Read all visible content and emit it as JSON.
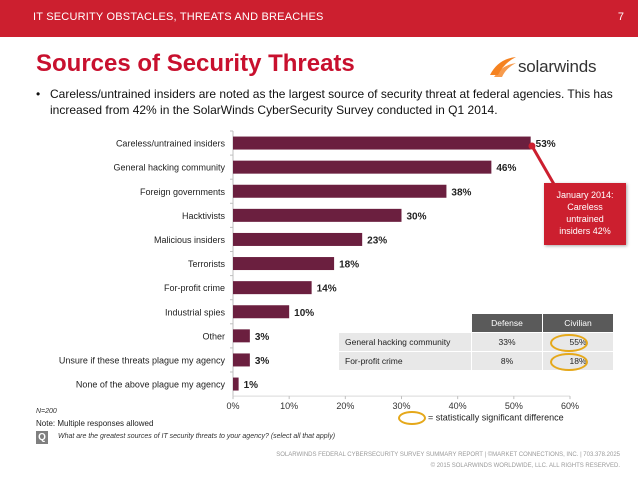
{
  "header": {
    "section_title": "IT SECURITY OBSTACLES, THREATS AND BREACHES",
    "page_number": "7"
  },
  "page_title": "Sources of Security Threats",
  "logo": {
    "text": "solarwinds"
  },
  "bullet": "Careless/untrained insiders are noted as the largest source of security threat at federal agencies. This has increased from 42% in the SolarWinds CyberSecurity Survey conducted in Q1 2014.",
  "callout": {
    "lines": [
      "January 2014:",
      "Careless",
      "untrained",
      "insiders 42%"
    ]
  },
  "subgroup_table": {
    "headers": [
      "",
      "Defense",
      "Civilian"
    ],
    "rows": [
      {
        "label": "General hacking community",
        "defense": "33%",
        "civilian": "55%",
        "civilian_significant": true
      },
      {
        "label": "For-profit crime",
        "defense": "8%",
        "civilian": "18%",
        "civilian_significant": true
      }
    ]
  },
  "significance_legend": "= statistically significant difference",
  "notes": {
    "n": "N=200",
    "multiple": "Note: Multiple responses allowed",
    "q_icon": "Q",
    "question": "What are the greatest sources of IT security threats to your agency? (select all that apply)"
  },
  "footer": {
    "line1": "SOLARWINDS FEDERAL CYBERSECURITY SURVEY SUMMARY REPORT | ©MARKET CONNECTIONS, INC. | 703.378.2025",
    "line2": "© 2015 SOLARWINDS WORLDWIDE, LLC. ALL RIGHTS RESERVED."
  },
  "chart_data": {
    "type": "bar",
    "orientation": "horizontal",
    "categories": [
      "Careless/untrained insiders",
      "General hacking community",
      "Foreign governments",
      "Hacktivists",
      "Malicious insiders",
      "Terrorists",
      "For-profit crime",
      "Industrial spies",
      "Other",
      "Unsure if these threats plague my agency",
      "None of the above plague my agency"
    ],
    "values": [
      53,
      46,
      38,
      30,
      23,
      18,
      14,
      10,
      3,
      3,
      1
    ],
    "value_labels": [
      "53%",
      "46%",
      "38%",
      "30%",
      "23%",
      "18%",
      "14%",
      "10%",
      "3%",
      "3%",
      "1%"
    ],
    "xlim": [
      0,
      60
    ],
    "xticks": [
      "0%",
      "10%",
      "20%",
      "30%",
      "40%",
      "50%",
      "60%"
    ],
    "bar_color": "#6b1f3f",
    "title": "",
    "xlabel": "",
    "ylabel": ""
  }
}
